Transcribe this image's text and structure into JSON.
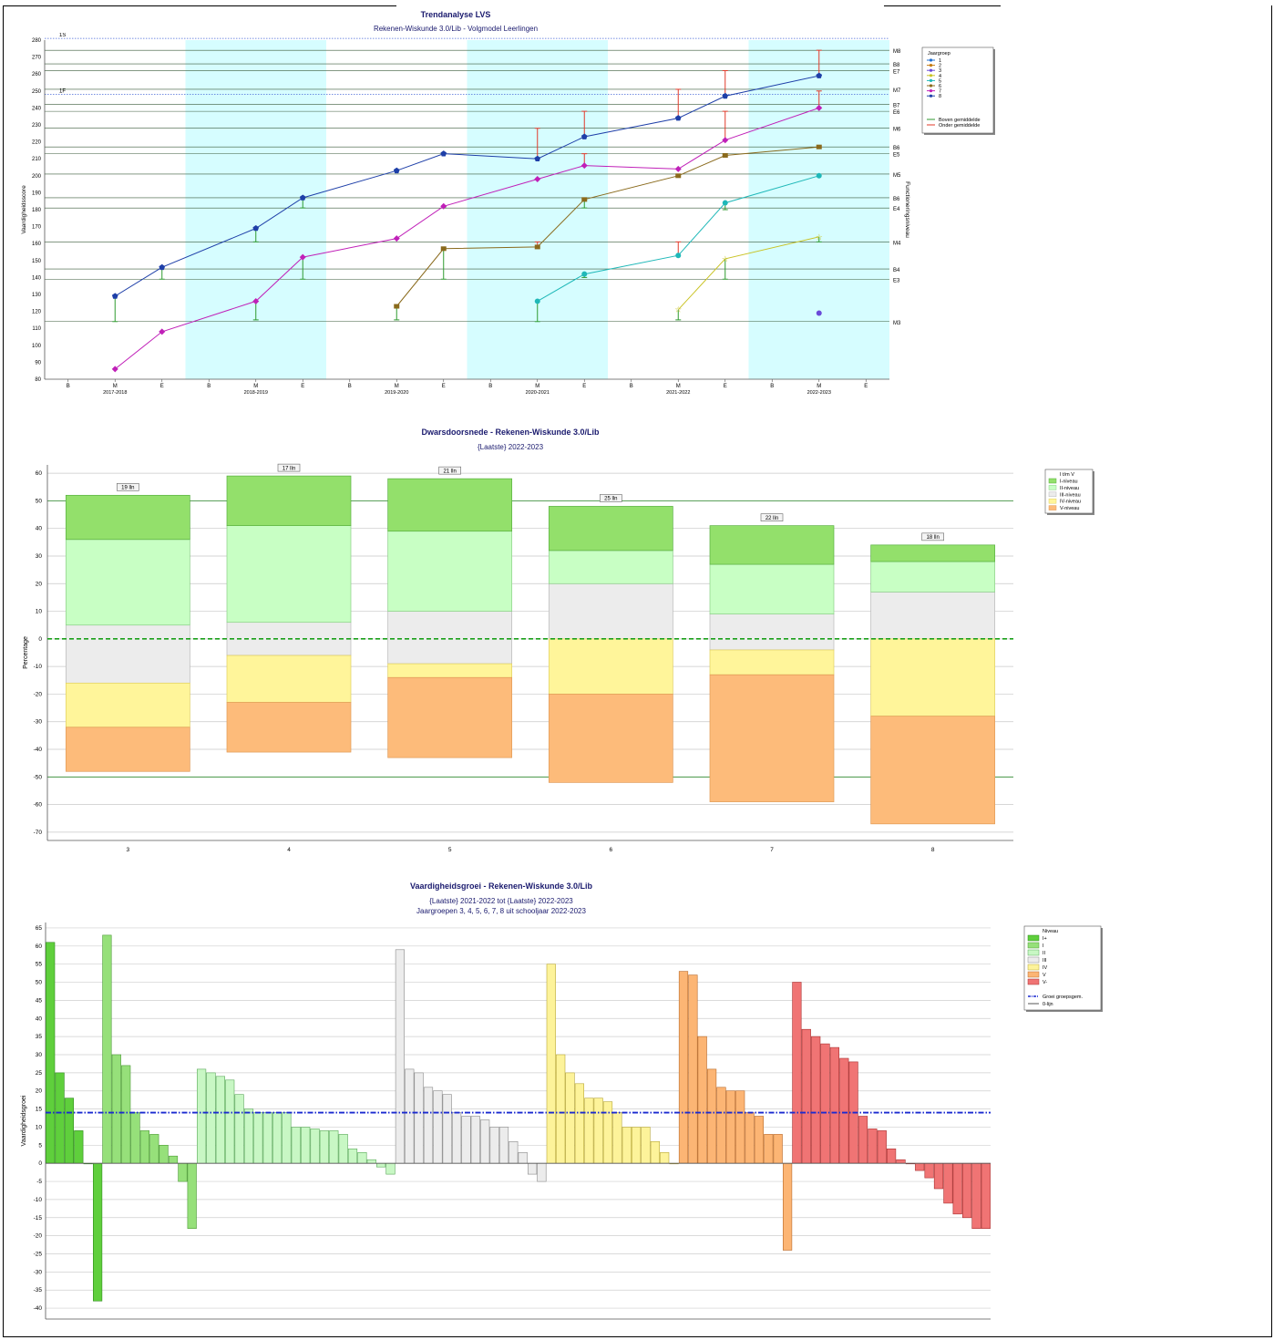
{
  "chart_data": [
    {
      "type": "line",
      "title": "Trendanalyse LVS",
      "subtitle": "Rekenen-Wiskunde 3.0/Lib - Volgmodel Leerlingen",
      "ylabel": "Vaardigheidsscore",
      "y2label": "Functioneringsniveau",
      "ylim": [
        80,
        280
      ],
      "yticks": [
        80,
        90,
        100,
        110,
        120,
        130,
        140,
        150,
        160,
        170,
        180,
        190,
        200,
        210,
        220,
        230,
        240,
        250,
        260,
        270,
        280
      ],
      "x_moments": [
        "B",
        "M",
        "E",
        "B",
        "M",
        "E",
        "B",
        "M",
        "E",
        "B",
        "M",
        "E",
        "B",
        "M",
        "E",
        "B",
        "M",
        "E"
      ],
      "school_years": [
        "2017-2018",
        "2018-2019",
        "2019-2020",
        "2020-2021",
        "2021-2022",
        "2022-2023"
      ],
      "shaded_years": [
        1,
        3,
        5
      ],
      "ref_dotted": [
        {
          "label": "1S",
          "y": 281
        },
        {
          "label": "1F",
          "y": 248
        }
      ],
      "ref_lines": [
        {
          "label": "M8",
          "y": 274
        },
        {
          "label": "B8",
          "y": 266
        },
        {
          "label": "E7",
          "y": 262
        },
        {
          "label": "M7",
          "y": 251
        },
        {
          "label": "B7",
          "y": 242
        },
        {
          "label": "E6",
          "y": 238
        },
        {
          "label": "M6",
          "y": 228
        },
        {
          "label": "B6",
          "y": 217
        },
        {
          "label": "E5",
          "y": 213
        },
        {
          "label": "M5",
          "y": 201
        },
        {
          "label": "B6",
          "y": 187
        },
        {
          "label": "E4",
          "y": 181
        },
        {
          "label": "M4",
          "y": 161
        },
        {
          "label": "B4",
          "y": 145
        },
        {
          "label": "E3",
          "y": 139
        },
        {
          "label": "M3",
          "y": 114
        }
      ],
      "legend_title": "Jaargroep",
      "legend_extra": [
        "Boven gemiddelde",
        "Onder gemiddelde"
      ],
      "series": [
        {
          "name": "1",
          "color": "#1f6fd1",
          "marker": "circle",
          "points": []
        },
        {
          "name": "2",
          "color": "#c47a10",
          "marker": "square",
          "points": []
        },
        {
          "name": "3",
          "color": "#6a4ad8",
          "marker": "circle",
          "points": [
            [
              16,
              119
            ]
          ]
        },
        {
          "name": "4",
          "color": "#c9c324",
          "marker": "star",
          "points": [
            [
              13,
              121
            ],
            [
              14,
              151
            ],
            [
              16,
              164
            ]
          ],
          "errors": [
            [
              13,
              "below",
              115
            ],
            [
              14,
              "below",
              139
            ],
            [
              16,
              "below",
              161
            ]
          ]
        },
        {
          "name": "5",
          "color": "#1fb8b8",
          "marker": "circle",
          "points": [
            [
              10,
              126
            ],
            [
              11,
              142
            ],
            [
              13,
              153
            ],
            [
              14,
              184
            ],
            [
              16,
              200
            ]
          ],
          "errors": [
            [
              10,
              "below",
              114
            ],
            [
              11,
              "below",
              140
            ],
            [
              13,
              "above",
              161
            ],
            [
              14,
              "below",
              180
            ]
          ]
        },
        {
          "name": "6",
          "color": "#8a6a1c",
          "marker": "square",
          "points": [
            [
              7,
              123
            ],
            [
              8,
              157
            ],
            [
              10,
              158
            ],
            [
              11,
              186
            ],
            [
              13,
              200
            ],
            [
              14,
              212
            ],
            [
              16,
              217
            ]
          ],
          "errors": [
            [
              7,
              "below",
              115
            ],
            [
              8,
              "below",
              139
            ],
            [
              10,
              "above",
              161
            ],
            [
              11,
              "below",
              181
            ],
            [
              16,
              "above",
              217
            ]
          ]
        },
        {
          "name": "7",
          "color": "#c020b8",
          "marker": "diamond",
          "points": [
            [
              1,
              86
            ],
            [
              2,
              108
            ],
            [
              4,
              126
            ],
            [
              5,
              152
            ],
            [
              7,
              163
            ],
            [
              8,
              182
            ],
            [
              10,
              198
            ],
            [
              11,
              206
            ],
            [
              13,
              204
            ],
            [
              14,
              221
            ],
            [
              16,
              240
            ]
          ],
          "errors": [
            [
              4,
              "below",
              115
            ],
            [
              5,
              "below",
              139
            ],
            [
              8,
              "below",
              181
            ],
            [
              11,
              "above",
              213
            ],
            [
              14,
              "above",
              238
            ],
            [
              16,
              "above",
              250
            ]
          ]
        },
        {
          "name": "8",
          "color": "#1e3fa8",
          "marker": "pentagon",
          "points": [
            [
              1,
              129
            ],
            [
              2,
              146
            ],
            [
              4,
              169
            ],
            [
              5,
              187
            ],
            [
              7,
              203
            ],
            [
              8,
              213
            ],
            [
              10,
              210
            ],
            [
              11,
              223
            ],
            [
              13,
              234
            ],
            [
              14,
              247
            ],
            [
              16,
              259
            ]
          ],
          "errors": [
            [
              1,
              "below",
              114
            ],
            [
              2,
              "below",
              139
            ],
            [
              4,
              "below",
              161
            ],
            [
              5,
              "below",
              181
            ],
            [
              10,
              "above",
              228
            ],
            [
              11,
              "above",
              238
            ],
            [
              13,
              "above",
              251
            ],
            [
              14,
              "above",
              262
            ],
            [
              16,
              "above",
              274
            ]
          ]
        }
      ]
    },
    {
      "type": "bar",
      "title": "Dwarsdoorsnede - Rekenen-Wiskunde 3.0/Lib",
      "subtitle": "{Laatste} 2022-2023",
      "ylabel": "Percentage",
      "ylim": [
        -70,
        60
      ],
      "yticks": [
        60,
        50,
        40,
        30,
        20,
        10,
        0,
        -10,
        -20,
        -30,
        -40,
        -50,
        -60,
        -70
      ],
      "categories": [
        "3",
        "4",
        "5",
        "6",
        "7",
        "8"
      ],
      "counts": [
        "19 lln",
        "17 lln",
        "21 lln",
        "25 lln",
        "22 lln",
        "18 lln"
      ],
      "series": [
        {
          "name": "I-niveau",
          "color": "#93e06b",
          "values": [
            16,
            18,
            19,
            16,
            14,
            6
          ]
        },
        {
          "name": "II-niveau",
          "color": "#c8ffc4",
          "values": [
            31,
            35,
            29,
            12,
            18,
            11
          ]
        },
        {
          "name": "III-niveau",
          "color": "#ececec",
          "values": [
            21,
            12,
            19,
            20,
            13,
            17
          ]
        },
        {
          "name": "IV-niveau",
          "color": "#fff59a",
          "values": [
            16,
            17,
            5,
            20,
            9,
            28
          ]
        },
        {
          "name": "V-niveau",
          "color": "#fdbb7a",
          "values": [
            16,
            18,
            29,
            32,
            46,
            39
          ]
        }
      ],
      "zero_shares": [
        {
          "above": 5,
          "below": 16
        },
        {
          "above": 6,
          "below": 6
        },
        {
          "above": 10,
          "below": 9
        },
        {
          "above": 20,
          "below": 0
        },
        {
          "above": 9,
          "below": 4
        },
        {
          "above": 17,
          "below": 0
        }
      ],
      "ref_lines": [
        50,
        -50
      ],
      "legend": [
        "I t/m V",
        "I-niveau",
        "II-niveau",
        "III-niveau",
        "IV-niveau",
        "V-niveau"
      ]
    },
    {
      "type": "bar",
      "title": "Vaardigheidsgroei - Rekenen-Wiskunde 3.0/Lib",
      "subtitle1": "{Laatste} 2021-2022 tot {Laatste} 2022-2023",
      "subtitle2": "Jaargroepen 3, 4, 5, 6, 7, 8 uit schooljaar 2022-2023",
      "ylabel": "Vaardigheidsgroei",
      "ylim": [
        -40,
        65
      ],
      "yticks": [
        65,
        60,
        55,
        50,
        45,
        40,
        35,
        30,
        25,
        20,
        15,
        10,
        5,
        0,
        -5,
        -10,
        -15,
        -20,
        -25,
        -30,
        -35,
        -40
      ],
      "group_average": 14,
      "legend_title": "Niveau",
      "legend_extra": [
        "Groei groepsgem.",
        "0-lijn"
      ],
      "groups": [
        {
          "name": "I+",
          "color": "#5fcf3c",
          "values": [
            61,
            25,
            18,
            9,
            0,
            -38
          ]
        },
        {
          "name": "I",
          "color": "#96e07a",
          "values": [
            63,
            30,
            27,
            14,
            9,
            8,
            5,
            2,
            -5,
            -18
          ]
        },
        {
          "name": "II",
          "color": "#c8f7c4",
          "values": [
            26,
            25,
            24,
            23,
            19,
            15,
            14,
            14,
            14,
            14,
            10,
            10,
            9.5,
            9,
            9,
            8,
            4,
            3,
            1,
            -1,
            -3
          ]
        },
        {
          "name": "III",
          "color": "#ececec",
          "values": [
            59,
            26,
            25,
            21,
            20,
            19,
            14,
            13,
            13,
            12,
            10,
            10,
            6,
            3,
            -3,
            -5
          ]
        },
        {
          "name": "IV",
          "color": "#fdf39a",
          "values": [
            55,
            30,
            25,
            22,
            18,
            18,
            17,
            14,
            10,
            10,
            10,
            6,
            3,
            0
          ]
        },
        {
          "name": "V",
          "color": "#fcb574",
          "values": [
            53,
            52,
            35,
            26,
            21,
            20,
            20,
            14,
            13,
            8,
            8,
            -24
          ]
        },
        {
          "name": "V-",
          "color": "#f07474",
          "values": [
            50,
            37,
            35,
            33,
            32,
            29,
            28,
            13,
            9.5,
            9,
            4,
            1,
            0,
            -2,
            -4,
            -7,
            -11,
            -14,
            -15,
            -18,
            -18
          ]
        }
      ]
    }
  ]
}
